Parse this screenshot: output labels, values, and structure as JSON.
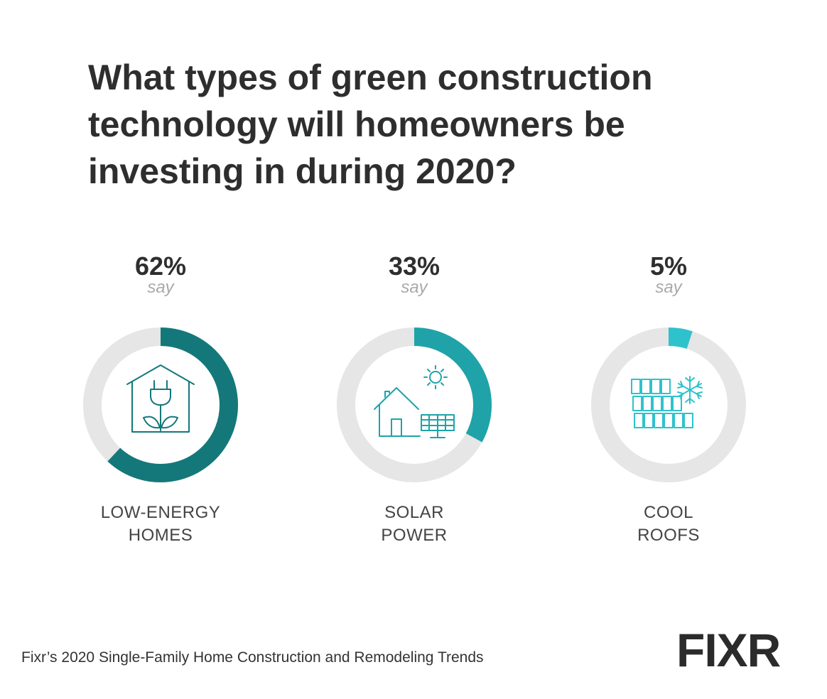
{
  "title_lines": [
    "What types of green construction",
    "technology will homeowners be",
    "investing in during 2020?"
  ],
  "chart_data": {
    "type": "donut",
    "title": "What types of green construction technology will homeowners be investing in during 2020?",
    "unit": "%",
    "items": [
      {
        "category_lines": [
          "LOW-ENERGY",
          "HOMES"
        ],
        "value": 62,
        "value_label": "62%",
        "sub_label": "say",
        "color": "#14787a",
        "icon": "house-plug-plant-icon"
      },
      {
        "category_lines": [
          "SOLAR",
          "POWER"
        ],
        "value": 33,
        "value_label": "33%",
        "sub_label": "say",
        "color": "#1fa3a8",
        "icon": "house-solar-panel-icon"
      },
      {
        "category_lines": [
          "COOL",
          "ROOFS"
        ],
        "value": 5,
        "value_label": "5%",
        "sub_label": "say",
        "color": "#2ec2cc",
        "icon": "roof-tiles-snowflake-icon"
      }
    ],
    "track_color": "#e6e6e6"
  },
  "footer": {
    "source": "Fixr’s 2020 Single-Family Home Construction and Remodeling Trends"
  },
  "logo": {
    "text": "FIXR",
    "text_color": "#2b2b2b",
    "accent_color": "#3cb54a"
  }
}
